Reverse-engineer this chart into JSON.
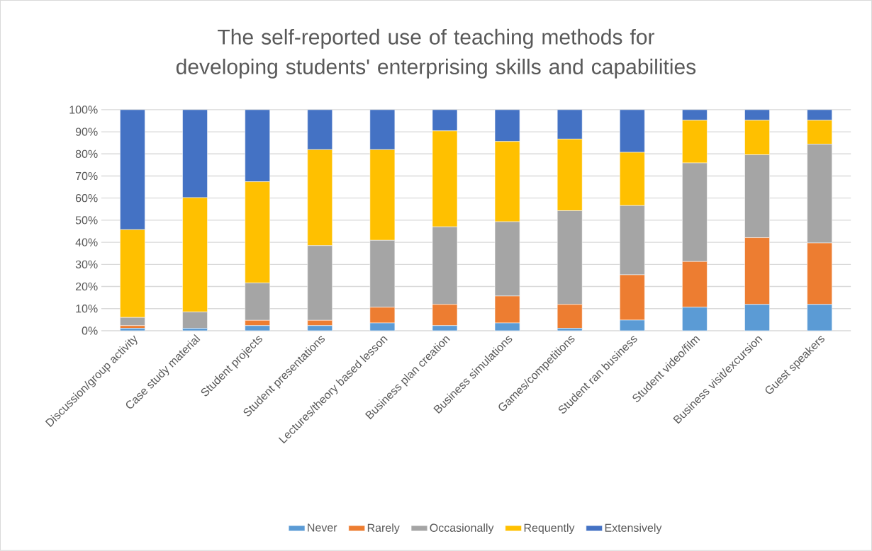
{
  "chart_data": {
    "type": "bar",
    "stacked": true,
    "title": "The self-reported use of teaching methods for developing students' enterprising skills and capabilities",
    "categories": [
      "Discussion/group activity",
      "Case study material",
      "Student projects",
      "Student presentations",
      "Lectures/theory based lesson",
      "Business plan creation",
      "Business simulations",
      "Games/competitions",
      "Student ran business",
      "Student video/film",
      "Business visit/excursion",
      "Guest speakers"
    ],
    "series": [
      {
        "name": "Never",
        "color": "#5b9bd5",
        "values": [
          1.1,
          1.1,
          2.3,
          2.3,
          3.5,
          2.3,
          3.5,
          1.1,
          4.8,
          10.6,
          11.9,
          11.9
        ]
      },
      {
        "name": "Rarely",
        "color": "#ed7d31",
        "values": [
          1.2,
          0,
          2.4,
          2.4,
          7.1,
          9.6,
          12.2,
          10.8,
          20.5,
          20.7,
          30.2,
          27.8
        ]
      },
      {
        "name": "Occasionally",
        "color": "#a5a5a5",
        "values": [
          3.7,
          7.4,
          16.9,
          33.8,
          30.3,
          35.1,
          33.6,
          42.4,
          31.3,
          44.6,
          37.5,
          44.7
        ]
      },
      {
        "name": "Requently",
        "color": "#ffc000",
        "values": [
          39.7,
          51.7,
          45.8,
          43.4,
          41.0,
          43.4,
          36.3,
          32.4,
          24.1,
          19.3,
          15.6,
          10.8
        ]
      },
      {
        "name": "Extensively",
        "color": "#4472c4",
        "values": [
          54.3,
          39.8,
          32.6,
          18.1,
          18.1,
          9.6,
          14.4,
          13.3,
          19.3,
          4.8,
          4.8,
          4.8
        ]
      }
    ],
    "ylim": [
      0,
      100
    ],
    "yticks": [
      {
        "value": 0,
        "label": "0%"
      },
      {
        "value": 10,
        "label": "10%"
      },
      {
        "value": 20,
        "label": "20%"
      },
      {
        "value": 30,
        "label": "30%"
      },
      {
        "value": 40,
        "label": "40%"
      },
      {
        "value": 50,
        "label": "50%"
      },
      {
        "value": 60,
        "label": "60%"
      },
      {
        "value": 70,
        "label": "70%"
      },
      {
        "value": 80,
        "label": "80%"
      },
      {
        "value": 90,
        "label": "90%"
      },
      {
        "value": 100,
        "label": "100%"
      }
    ],
    "grid": "y",
    "legend": "bottom"
  }
}
